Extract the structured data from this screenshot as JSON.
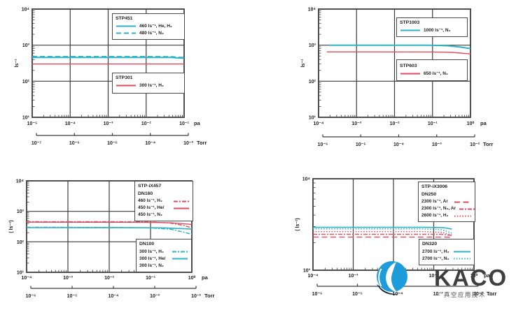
{
  "page": {
    "background": "#ffffff"
  },
  "colors": {
    "cyan": "#2bb3c6",
    "red": "#e14b5f",
    "axis": "#3c3c3c",
    "grid": "#3c3c3c",
    "text": "#1c1c1c",
    "legend_border": "#4a4a4a",
    "logo_blue": "#1d9cd9",
    "logo_dark": "#12293f",
    "brand_text": "#3f3f3f"
  },
  "watermark": {
    "brand": "KACO",
    "subtitle": "— 真空应用技术 —"
  },
  "chart_data": [
    {
      "id": "stp451-stp301",
      "type": "line",
      "scale": "log-log",
      "ylabel": "ls⁻¹",
      "x_unit": "pa",
      "x2_unit": "Torr",
      "x_range_exp": [
        -5,
        -1
      ],
      "y_range_exp": [
        1,
        4
      ],
      "x_ticks": [
        "10⁻⁵",
        "10⁻⁴",
        "10⁻³",
        "10⁻²",
        "10⁻¹"
      ],
      "x2_ticks": [
        "10⁻⁷",
        "10⁻⁶",
        "10⁻⁵",
        "10⁻⁴",
        "10⁻³"
      ],
      "y_ticks": [
        "10⁴",
        "10³",
        "10²",
        "10¹"
      ],
      "series": [
        {
          "name": "STP451 — 480 ls⁻¹, N₂",
          "mk": "cyan dashed",
          "width": 2,
          "points": [
            [
              -5,
              480
            ],
            [
              -2,
              480
            ],
            [
              -1.35,
              477
            ],
            [
              -1,
              450
            ]
          ]
        },
        {
          "name": "STP451 — 460 ls⁻¹, He, H₂",
          "mk": "cyan solid",
          "width": 2,
          "points": [
            [
              -5,
              458
            ],
            [
              -2,
              458
            ],
            [
              -1.35,
              455
            ],
            [
              -1,
              432
            ]
          ]
        },
        {
          "name": "STP301 — 300 ls⁻¹, H₂",
          "mk": "red solid",
          "width": 1.4,
          "points": [
            [
              -5,
              300
            ],
            [
              -1,
              300
            ]
          ]
        }
      ],
      "legends": [
        {
          "title": "STP451",
          "entries": [
            {
              "label": "460 ls⁻¹, He, H₂",
              "mk": "cyan solid"
            },
            {
              "label": "480 ls⁻¹, N₂",
              "mk": "cyan dashed"
            }
          ]
        },
        {
          "title": "STP301",
          "entries": [
            {
              "label": "300 ls⁻¹, H₂",
              "mk": "red solid"
            }
          ]
        }
      ]
    },
    {
      "id": "stp1003-stp603",
      "type": "line",
      "scale": "log-log",
      "ylabel": "ls⁻¹",
      "x_unit": "pa",
      "x2_unit": "Torr",
      "x_range_exp": [
        -4,
        0
      ],
      "y_range_exp": [
        1,
        4
      ],
      "x_ticks": [
        "10⁻⁴",
        "10⁻³",
        "10⁻²",
        "10⁻¹",
        "10⁰"
      ],
      "x2_ticks": [
        "10⁻⁶",
        "10⁻⁵",
        "10⁻⁴",
        "10⁻³",
        "10⁻²"
      ],
      "y_ticks": [
        "10⁴",
        "10³",
        "10²",
        "10¹"
      ],
      "series": [
        {
          "name": "STP1003 — 1000 ls⁻¹, N₂",
          "mk": "cyan solid",
          "width": 2,
          "points": [
            [
              -3.72,
              1000
            ],
            [
              -1.1,
              1000
            ],
            [
              -0.6,
              965
            ],
            [
              -0.25,
              880
            ],
            [
              0,
              800
            ]
          ]
        },
        {
          "name": "STP603 — 650 ls⁻¹, N₂",
          "mk": "red solid",
          "width": 1.4,
          "points": [
            [
              -3.78,
              650
            ],
            [
              -1,
              648
            ],
            [
              -0.5,
              632
            ],
            [
              0,
              572
            ]
          ]
        }
      ],
      "legends": [
        {
          "title": "STP1003",
          "entries": [
            {
              "label": "1000 ls⁻¹, N₂",
              "mk": "cyan solid"
            }
          ]
        },
        {
          "title": "STP603",
          "entries": [
            {
              "label": "650 ls⁻¹, N₂",
              "mk": "red solid"
            }
          ]
        }
      ]
    },
    {
      "id": "stp-ix457",
      "type": "line",
      "scale": "log-log",
      "ylabel": "( ls⁻¹)",
      "x_unit": "pa",
      "x2_unit": "Torr",
      "x_range_exp": [
        -4,
        0
      ],
      "y_range_exp": [
        1,
        4
      ],
      "x_ticks": [
        "10⁻⁴",
        "10⁻³",
        "10⁻²",
        "10⁻¹",
        "10⁰"
      ],
      "x2_ticks": [
        "10⁻⁶",
        "10⁻⁵",
        "10⁻⁴",
        "10⁻³",
        "10⁻²"
      ],
      "y_ticks": [
        "10⁴",
        "10³",
        "10²",
        "10¹"
      ],
      "series": [
        {
          "name": "DN160 — 460 ls⁻¹, H₂",
          "mk": "red dash-dot",
          "width": 1.4,
          "points": [
            [
              -4,
              458
            ],
            [
              -1.5,
              455
            ],
            [
              -1,
              447
            ],
            [
              -0.55,
              415
            ],
            [
              -0.2,
              345
            ],
            [
              0,
              288
            ]
          ]
        },
        {
          "name": "DN160 — 450 ls⁻¹, He/N₂",
          "mk": "red solid",
          "width": 1.4,
          "points": [
            [
              -4,
              441
            ],
            [
              -1.5,
              439
            ],
            [
              -1,
              435
            ],
            [
              -0.5,
              421
            ],
            [
              0,
              372
            ]
          ]
        },
        {
          "name": "DN100 — 300 ls⁻¹, H₂",
          "mk": "cyan dash-dot",
          "width": 1.4,
          "points": [
            [
              -4,
              301
            ],
            [
              -1.8,
              297
            ],
            [
              -1,
              286
            ],
            [
              -0.5,
              258
            ],
            [
              -0.15,
              200
            ],
            [
              0,
              176
            ]
          ]
        },
        {
          "name": "DN100 — 300 ls⁻¹, He/N₂",
          "mk": "cyan solid",
          "width": 1.6,
          "points": [
            [
              -4,
              292
            ],
            [
              -1.5,
              291
            ],
            [
              -0.7,
              288
            ],
            [
              0,
              262
            ]
          ]
        }
      ],
      "legends": [
        {
          "title": "STP-iX457",
          "subtitle": "DN160",
          "entries": [
            {
              "label": "460 ls⁻¹, H₂",
              "mk": "red dash-dot"
            },
            {
              "label": "450 ls⁻¹, He/",
              "mk": "red solid"
            },
            {
              "label": "450 ls⁻¹, N₂",
              "mk": "none"
            }
          ]
        },
        {
          "title": "DN100",
          "entries": [
            {
              "label": "300 ls⁻¹, H₂",
              "mk": "cyan dash-dot"
            },
            {
              "label": "300 ls⁻¹, He/",
              "mk": "cyan solid"
            },
            {
              "label": "300 ls⁻¹, N₂",
              "mk": "none"
            }
          ]
        }
      ]
    },
    {
      "id": "stp-ix3006",
      "type": "line",
      "scale": "log-log",
      "ylabel": "( ls⁻¹)",
      "x_unit": "pa",
      "x2_unit": "Torr",
      "x_range_exp": [
        -4,
        0
      ],
      "y_range_exp": [
        3,
        4
      ],
      "x_ticks": [
        "10⁻⁴",
        "10⁻³",
        "10⁻²",
        "10⁻¹",
        "10⁰"
      ],
      "x2_ticks": [
        "10⁻⁶",
        "10⁻⁵",
        "10⁻⁴",
        "10⁻³",
        "10⁻²"
      ],
      "y_ticks": [
        "10⁴",
        "10³"
      ],
      "series": [
        {
          "name": "DN320 — 2700 ls⁻¹, H₂",
          "mk": "cyan solid",
          "width": 1.6,
          "points": [
            [
              -4,
              2940
            ],
            [
              -1.2,
              2940
            ],
            [
              -0.75,
              2915
            ],
            [
              -0.55,
              2815
            ]
          ]
        },
        {
          "name": "DN320 — 2700 ls⁻¹, N₂",
          "mk": "cyan dotted",
          "width": 1.5,
          "points": [
            [
              -4,
              2830
            ],
            [
              -1.3,
              2830
            ],
            [
              -0.8,
              2775
            ],
            [
              -0.55,
              2545
            ]
          ]
        },
        {
          "name": "DN250 — 2600 ls⁻¹, H₂",
          "mk": "red dotted",
          "width": 1.5,
          "points": [
            [
              -4,
              2650
            ],
            [
              -1.2,
              2650
            ],
            [
              -0.8,
              2595
            ],
            [
              -0.55,
              2430
            ]
          ]
        },
        {
          "name": "DN250 — 2300 ls⁻¹, N₂, Ar",
          "mk": "red dash-dot",
          "width": 1.4,
          "points": [
            [
              -4,
              2470
            ],
            [
              -0.8,
              2470
            ],
            [
              -0.55,
              2395
            ]
          ]
        },
        {
          "name": "DN250 — 2300 ls⁻¹, Ar",
          "mk": "red long-dash",
          "width": 1.4,
          "points": [
            [
              -4,
              2300
            ],
            [
              -0.7,
              2300
            ],
            [
              -0.52,
              2270
            ]
          ]
        }
      ],
      "legends": [
        {
          "title": "STP-iX3006",
          "subtitle": "DN250",
          "entries": [
            {
              "label": "2300 ls⁻¹, Ar",
              "mk": "red long-dash"
            },
            {
              "label": "2300 ls⁻¹, N₂, Ar",
              "mk": "red dash-dot"
            },
            {
              "label": "2600 ls⁻¹, H₂",
              "mk": "red dotted"
            }
          ]
        },
        {
          "title": "DN320",
          "entries": [
            {
              "label": "2700 ls⁻¹, H₂",
              "mk": "cyan solid"
            },
            {
              "label": "2700 ls⁻¹, N₂",
              "mk": "cyan dotted"
            }
          ]
        }
      ]
    }
  ]
}
